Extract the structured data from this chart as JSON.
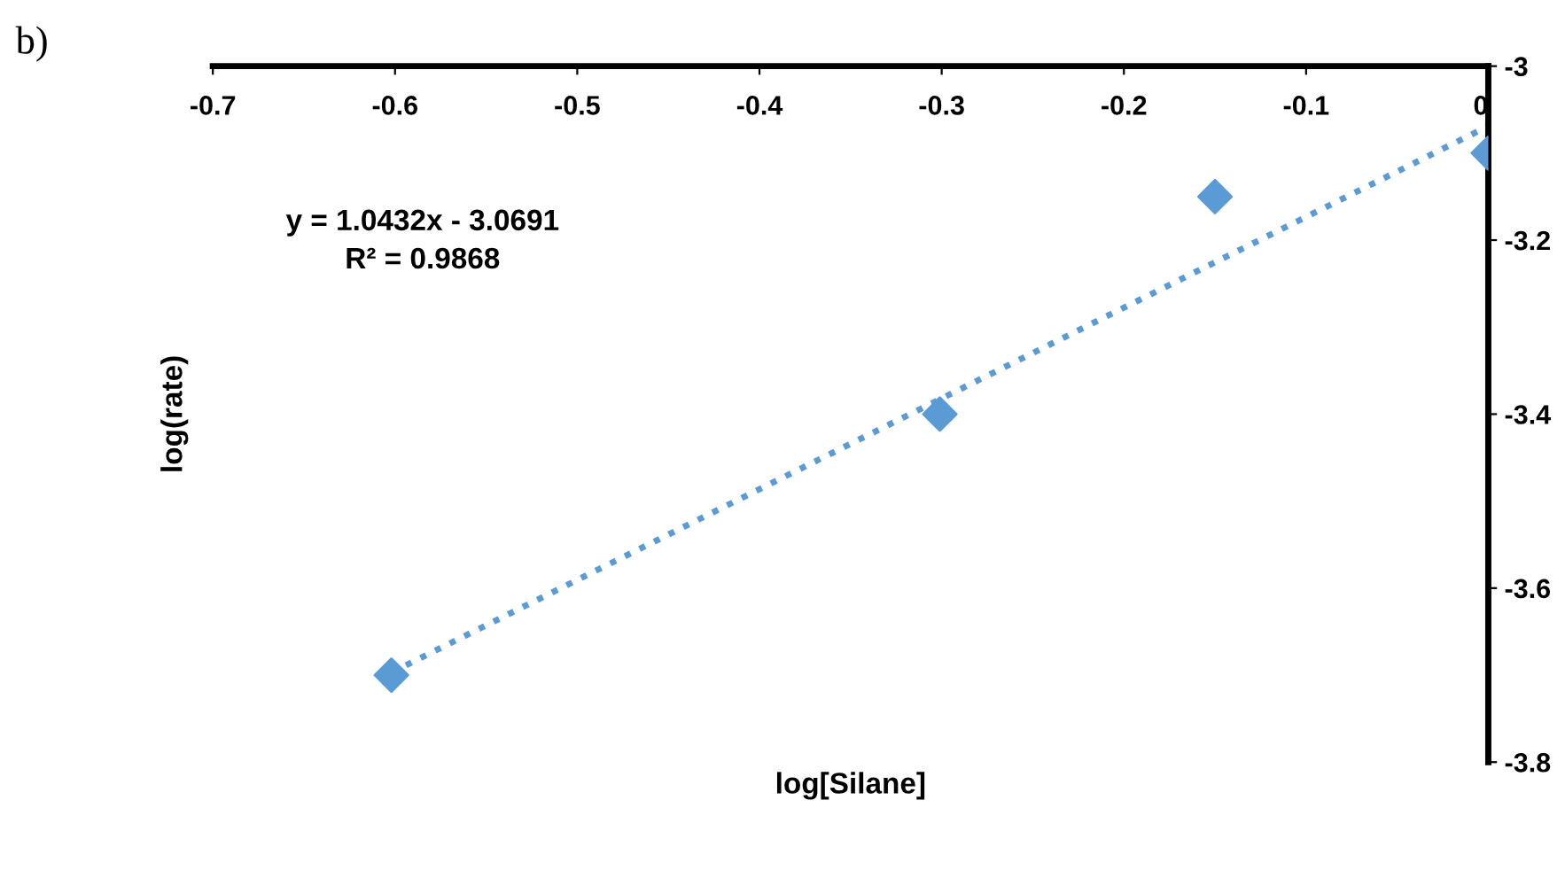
{
  "chart_data": {
    "type": "scatter",
    "xlabel": "log[Silane]",
    "ylabel": "log(rate)",
    "annotations": [
      "b)",
      "y = 1.0432x - 3.0691\nR² = 0.9868"
    ],
    "xlim": [
      -0.7,
      0
    ],
    "ylim": [
      -3.8,
      -3
    ],
    "xticks": [
      -0.7,
      -0.6,
      -0.5,
      -0.4,
      -0.3,
      -0.2,
      -0.1,
      0
    ],
    "yticks": [
      -3.8,
      -3.6,
      -3.4,
      -3.2,
      -3
    ],
    "grid": false,
    "legend": false,
    "marker": "diamond",
    "series": [
      {
        "color": "#5b9bd5",
        "x": [
          -0.602,
          -0.301,
          -0.15,
          0
        ],
        "values": [
          -3.7,
          -3.4,
          -3.15,
          -3.1
        ]
      },
      {
        "type": "line",
        "color": "#5b9bd5",
        "line_style": "dotted",
        "marker": "none",
        "x": [
          -0.602,
          0
        ],
        "values": [
          -3.697,
          -3.069
        ]
      }
    ]
  }
}
